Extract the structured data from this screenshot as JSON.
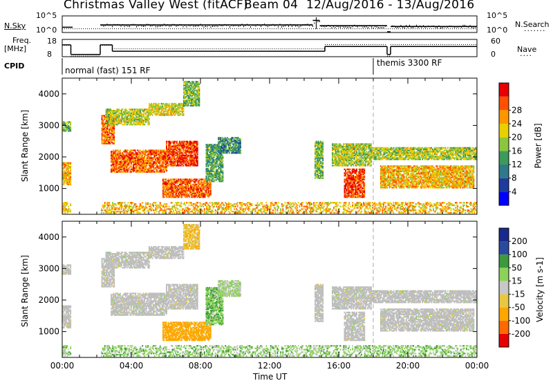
{
  "chart_title": "Christmas Valley West (fitACF)",
  "beam_label": "Beam 04",
  "date_range": "12/Aug/2016 - 13/Aug/2016",
  "nsky": {
    "label": "N.Sky",
    "ticks": [
      "10^5",
      "10^0"
    ]
  },
  "nsearch": {
    "label": "N.Search",
    "ticks": [
      "10^5",
      "10^0"
    ]
  },
  "freq": {
    "label_line1": "Freq.",
    "label_line2": "[MHz]",
    "ticks": [
      "18",
      "8"
    ]
  },
  "nave": {
    "label": "Nave",
    "ticks": [
      "60",
      "0"
    ]
  },
  "cpid": {
    "label": "CPID",
    "modes": [
      "normal (fast) 151 RF",
      "themis 3300 RF"
    ]
  },
  "colors": {
    "power": [
      "#0000ff",
      "#1e3c9b",
      "#2e7a8a",
      "#3c9a5a",
      "#8cc63f",
      "#e8d000",
      "#ff9600",
      "#ff5000",
      "#e60000"
    ],
    "velocity": [
      "#e60000",
      "#ff6a00",
      "#ffa500",
      "#e8c840",
      "#c8c8c8",
      "#8cd25a",
      "#3c9a3c",
      "#2a4aa0",
      "#1a2a8c"
    ],
    "ground_scatter": "#bebebe"
  },
  "chart_data": {
    "type": "heatmap",
    "x_axis": {
      "label": "Time UT",
      "ticks": [
        "00:00",
        "04:00",
        "08:00",
        "12:00",
        "16:00",
        "20:00",
        "00:00"
      ],
      "range_hours": [
        0,
        24
      ]
    },
    "y_axis": {
      "label": "Slant Range [km]",
      "ticks": [
        "1000",
        "2000",
        "3000",
        "4000"
      ],
      "range_km": [
        180,
        4500
      ]
    },
    "panels": [
      {
        "name": "Power",
        "colorbar_label": "Power [dB]",
        "colorbar_ticks": [
          "4",
          "8",
          "12",
          "16",
          "20",
          "24",
          "28"
        ],
        "range": [
          0,
          30
        ]
      },
      {
        "name": "Velocity",
        "colorbar_label": "Velocity [m s-1]",
        "colorbar_ticks": [
          "200",
          "100",
          "50",
          "15",
          "-15",
          "-50",
          "-100",
          "-200"
        ],
        "range": [
          -250,
          250
        ]
      }
    ],
    "noise_series": [
      {
        "name": "N.Sky",
        "segments": [
          [
            0,
            0.6,
            0.3
          ],
          [
            2.2,
            14.5,
            0.45
          ],
          [
            14.5,
            14.9,
            0.75
          ],
          [
            14.9,
            18.8,
            0.4
          ],
          [
            18.8,
            19.0,
            0.0
          ],
          [
            19.0,
            24,
            0.35
          ]
        ]
      },
      {
        "name": "N.Search",
        "segments": [
          [
            0,
            24,
            0.2
          ]
        ]
      }
    ],
    "freq_series": [
      [
        0,
        0.5,
        15
      ],
      [
        0.5,
        2.2,
        9
      ],
      [
        2.2,
        2.9,
        15
      ],
      [
        2.9,
        15.2,
        11
      ],
      [
        15.2,
        18.8,
        14
      ],
      [
        18.8,
        19.0,
        9
      ],
      [
        19.0,
        24,
        14
      ]
    ],
    "nave_series": [
      [
        0,
        0.5,
        40
      ],
      [
        0.5,
        2.2,
        0
      ],
      [
        2.2,
        2.9,
        40
      ],
      [
        2.9,
        15.2,
        27
      ],
      [
        15.2,
        18.8,
        43
      ],
      [
        18.8,
        19.0,
        0
      ],
      [
        19.0,
        24,
        43
      ]
    ],
    "cpid_change_hours": [
      18.0
    ],
    "scatter_regions": [
      {
        "t0": 0.0,
        "t1": 0.45,
        "r0": 2800,
        "r1": 3100,
        "p": 14,
        "v": -10,
        "gs": true
      },
      {
        "t0": 0.0,
        "t1": 0.45,
        "r0": 1100,
        "r1": 1800,
        "p": 20,
        "v": -5,
        "gs": true
      },
      {
        "t0": 2.2,
        "t1": 3.0,
        "r0": 2400,
        "r1": 3300,
        "p": 24,
        "v": -5,
        "gs": true
      },
      {
        "t0": 2.5,
        "t1": 5.0,
        "r0": 3000,
        "r1": 3500,
        "p": 16,
        "v": 0,
        "gs": true
      },
      {
        "t0": 5.0,
        "t1": 7.0,
        "r0": 3300,
        "r1": 3700,
        "p": 18,
        "v": 0,
        "gs": true
      },
      {
        "t0": 2.8,
        "t1": 6.0,
        "r0": 1500,
        "r1": 2200,
        "p": 24,
        "v": 5,
        "gs": true
      },
      {
        "t0": 6.0,
        "t1": 7.8,
        "r0": 1700,
        "r1": 2500,
        "p": 26,
        "v": 0,
        "gs": true
      },
      {
        "t0": 5.8,
        "t1": 8.6,
        "r0": 700,
        "r1": 1300,
        "p": 24,
        "v": -70,
        "gs": false
      },
      {
        "t0": 7.0,
        "t1": 7.9,
        "r0": 3600,
        "r1": 4400,
        "p": 14,
        "v": -40,
        "gs": false
      },
      {
        "t0": 8.3,
        "t1": 9.3,
        "r0": 1200,
        "r1": 2400,
        "p": 12,
        "v": 40,
        "gs": false
      },
      {
        "t0": 9.0,
        "t1": 10.3,
        "r0": 2100,
        "r1": 2600,
        "p": 10,
        "v": 20,
        "gs": false
      },
      {
        "t0": 14.6,
        "t1": 15.1,
        "r0": 1300,
        "r1": 2500,
        "p": 14,
        "v": 0,
        "gs": true
      },
      {
        "t0": 15.6,
        "t1": 17.9,
        "r0": 1700,
        "r1": 2400,
        "p": 16,
        "v": 5,
        "gs": true
      },
      {
        "t0": 16.3,
        "t1": 17.5,
        "r0": 700,
        "r1": 1600,
        "p": 26,
        "v": 5,
        "gs": true
      },
      {
        "t0": 17.8,
        "t1": 24.0,
        "r0": 1900,
        "r1": 2300,
        "p": 16,
        "v": 10,
        "gs": true
      },
      {
        "t0": 18.4,
        "t1": 23.8,
        "r0": 1000,
        "r1": 1700,
        "p": 20,
        "v": 0,
        "gs": true
      },
      {
        "t0": 0.0,
        "t1": 24.0,
        "r0": 200,
        "r1": 550,
        "p": 20,
        "v": 30,
        "gs": false
      }
    ]
  }
}
